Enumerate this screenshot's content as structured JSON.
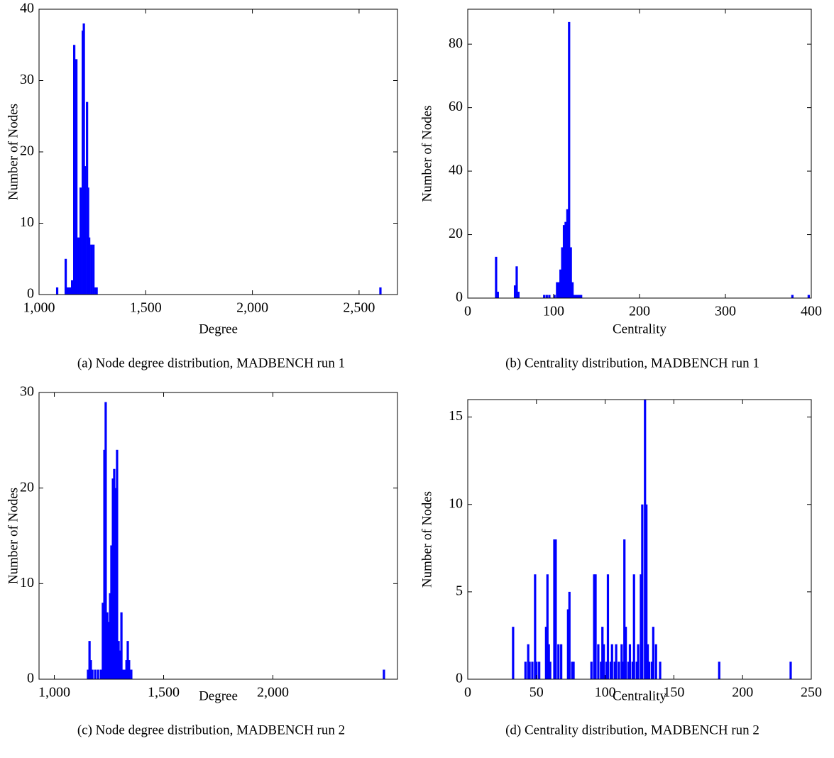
{
  "chart_data": [
    {
      "type": "bar",
      "xlabel": "Degree",
      "ylabel": "Number of Nodes",
      "caption": "(a) Node degree distribution, MADBENCH run 1",
      "color": "#0000ff",
      "x": [
        1085,
        1125,
        1135,
        1145,
        1155,
        1165,
        1175,
        1185,
        1195,
        1205,
        1210,
        1215,
        1225,
        1230,
        1235,
        1245,
        1255,
        1265,
        1270,
        2600
      ],
      "values": [
        1,
        5,
        1,
        1,
        2,
        35,
        33,
        8,
        15,
        37,
        38,
        18,
        27,
        15,
        8,
        7,
        7,
        1,
        1,
        1
      ],
      "xlim": [
        1000,
        2680
      ],
      "xticks": [
        {
          "value": 1000,
          "label": "1,000"
        },
        {
          "value": 1500,
          "label": "1,500"
        },
        {
          "value": 2000,
          "label": "2,000"
        },
        {
          "value": 2500,
          "label": "2,500"
        }
      ],
      "ylim": [
        0,
        40
      ],
      "yticks": [
        0,
        10,
        20,
        30,
        40
      ]
    },
    {
      "type": "bar",
      "xlabel": "Centrality",
      "ylabel": "Number of Nodes",
      "caption": "(b) Centrality distribution, MADBENCH run 1",
      "color": "#0000ff",
      "x": [
        33,
        35,
        55,
        57,
        59,
        89,
        92,
        95,
        101,
        104,
        106,
        108,
        110,
        112,
        114,
        116,
        118,
        120,
        122,
        124,
        126,
        128,
        130,
        132,
        378,
        397
      ],
      "values": [
        13,
        2,
        4,
        10,
        2,
        1,
        1,
        1,
        1,
        5,
        5,
        9,
        16,
        23,
        24,
        28,
        87,
        16,
        5,
        1,
        1,
        1,
        1,
        1,
        1,
        1
      ],
      "xlim": [
        0,
        400
      ],
      "xticks": [
        0,
        100,
        200,
        300,
        400
      ],
      "ylim": [
        0,
        91
      ],
      "yticks": [
        0,
        20,
        40,
        60,
        80
      ]
    },
    {
      "type": "bar",
      "xlabel": "Degree",
      "ylabel": "Number of Nodes",
      "caption": "(c) Node degree distribution, MADBENCH run 2",
      "color": "#0000ff",
      "x": [
        1154,
        1161,
        1167,
        1174,
        1187,
        1200,
        1213,
        1222,
        1229,
        1235,
        1242,
        1248,
        1255,
        1261,
        1268,
        1274,
        1281,
        1287,
        1294,
        1300,
        1307,
        1313,
        1323,
        1330,
        1336,
        1342,
        1352,
        2508
      ],
      "values": [
        1,
        4,
        2,
        1,
        1,
        1,
        1,
        8,
        24,
        29,
        7,
        6,
        9,
        14,
        21,
        22,
        20,
        24,
        4,
        3,
        7,
        1,
        1,
        2,
        4,
        2,
        1,
        1
      ],
      "xlim": [
        930,
        2570
      ],
      "xticks": [
        {
          "value": 1000,
          "label": "1,000"
        },
        {
          "value": 1500,
          "label": "1,500"
        },
        {
          "value": 2000,
          "label": "2,000"
        }
      ],
      "ylim": [
        0,
        30
      ],
      "yticks": [
        0,
        10,
        20,
        30
      ]
    },
    {
      "type": "bar",
      "xlabel": "Centrality",
      "ylabel": "Number of Nodes",
      "caption": "(d) Centrality distribution, MADBENCH run 2",
      "color": "#0000ff",
      "x": [
        33,
        42,
        44,
        45,
        47,
        49,
        50,
        52,
        57,
        58,
        59,
        60,
        63,
        64,
        66,
        68,
        73,
        74,
        76,
        77,
        90,
        92,
        93,
        95,
        97,
        98,
        99,
        101,
        102,
        104,
        105,
        107,
        108,
        110,
        112,
        113,
        114,
        115,
        117,
        118,
        120,
        121,
        123,
        124,
        126,
        127,
        129,
        130,
        131,
        132,
        134,
        135,
        137,
        140,
        183,
        235
      ],
      "values": [
        3,
        1,
        2,
        1,
        1,
        6,
        1,
        1,
        3,
        6,
        2,
        1,
        8,
        8,
        2,
        2,
        4,
        5,
        1,
        1,
        1,
        6,
        6,
        2,
        1,
        3,
        2,
        1,
        6,
        1,
        2,
        1,
        2,
        1,
        2,
        1,
        8,
        3,
        1,
        2,
        1,
        6,
        1,
        2,
        6,
        10,
        16,
        10,
        2,
        1,
        1,
        3,
        2,
        1,
        1,
        1
      ],
      "xlim": [
        0,
        250
      ],
      "xticks": [
        0,
        50,
        100,
        150,
        200,
        250
      ],
      "ylim": [
        0,
        16
      ],
      "yticks": [
        0,
        5,
        10,
        15
      ]
    }
  ]
}
